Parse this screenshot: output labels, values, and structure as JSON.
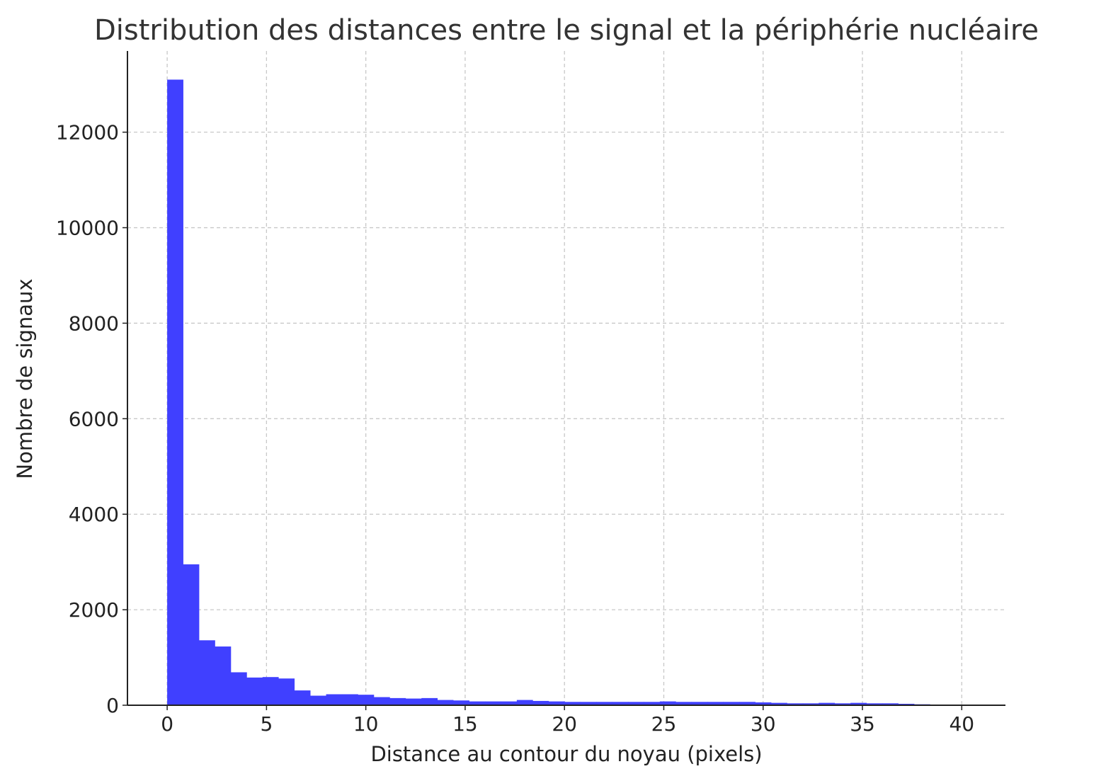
{
  "chart_data": {
    "type": "bar",
    "title": "Distribution des distances entre le signal et la périphérie nucléaire",
    "xlabel": "Distance au contour du noyau (pixels)",
    "ylabel": "Nombre de signaux",
    "xlim": [
      -2,
      42.2
    ],
    "ylim": [
      0,
      13700
    ],
    "xticks": [
      0,
      5,
      10,
      15,
      20,
      25,
      30,
      35,
      40
    ],
    "yticks": [
      0,
      2000,
      4000,
      6000,
      8000,
      10000,
      12000
    ],
    "grid": true,
    "bar_color": "#4040ff",
    "bins": {
      "start": 0,
      "width": 0.8,
      "values": [
        13100,
        2950,
        1360,
        1230,
        690,
        580,
        590,
        560,
        310,
        200,
        230,
        230,
        220,
        170,
        150,
        140,
        150,
        110,
        100,
        80,
        80,
        80,
        110,
        90,
        80,
        70,
        70,
        70,
        70,
        70,
        70,
        80,
        70,
        70,
        70,
        70,
        70,
        60,
        50,
        40,
        40,
        50,
        40,
        50,
        40,
        40,
        30,
        20,
        10,
        10,
        10,
        10
      ]
    }
  }
}
